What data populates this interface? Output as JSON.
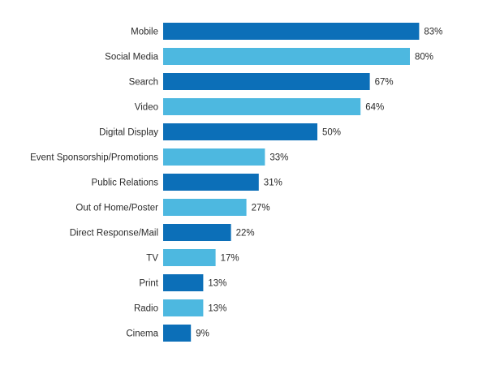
{
  "chart_data": {
    "type": "bar",
    "orientation": "horizontal",
    "categories": [
      "Mobile",
      "Social Media",
      "Search",
      "Video",
      "Digital Display",
      "Event Sponsorship/Promotions",
      "Public Relations",
      "Out of Home/Poster",
      "Direct Response/Mail",
      "TV",
      "Print",
      "Radio",
      "Cinema"
    ],
    "values": [
      83,
      80,
      67,
      64,
      50,
      33,
      31,
      27,
      22,
      17,
      13,
      13,
      9
    ],
    "value_labels": [
      "83%",
      "80%",
      "67%",
      "64%",
      "50%",
      "33%",
      "31%",
      "27%",
      "22%",
      "17%",
      "13%",
      "13%",
      "9%"
    ],
    "unit": "%",
    "xlim": [
      0,
      100
    ],
    "grid": false,
    "legend": "none",
    "colors": [
      "#0c6fb8",
      "#4db8e0"
    ],
    "title": "",
    "xlabel": "",
    "ylabel": ""
  }
}
